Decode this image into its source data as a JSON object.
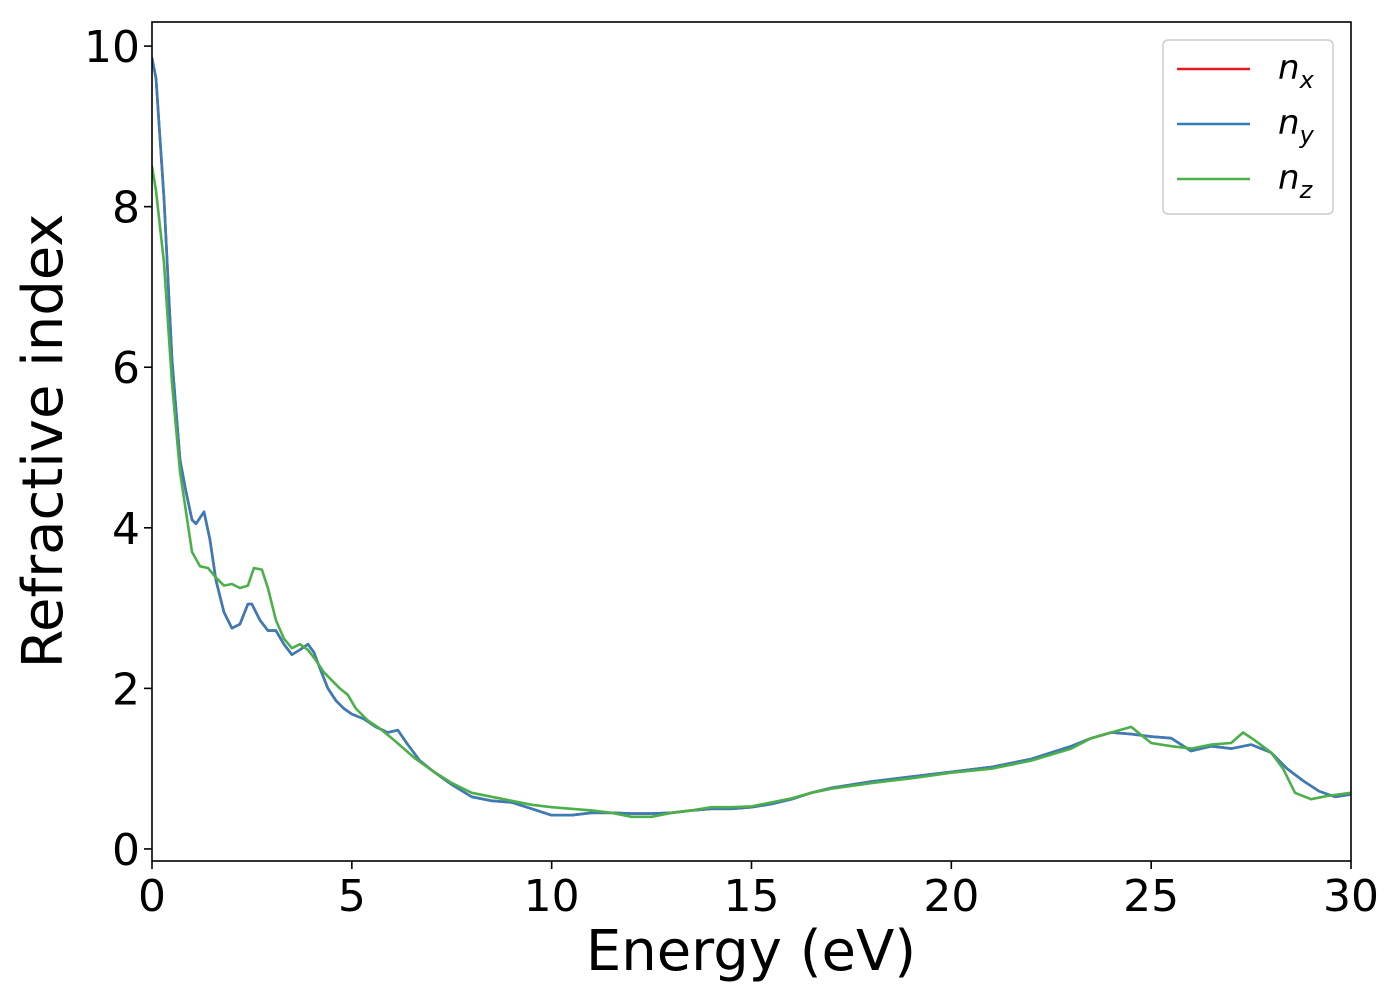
{
  "chart_data": {
    "type": "line",
    "title": "",
    "xlabel": "Energy (eV)",
    "ylabel": "Refractive index",
    "xlim": [
      0,
      30
    ],
    "ylim": [
      -0.15,
      10.3
    ],
    "xticks": [
      0,
      5,
      10,
      15,
      20,
      25,
      30
    ],
    "yticks": [
      0,
      2,
      4,
      6,
      8,
      10
    ],
    "grid": false,
    "legend_position": "top-right",
    "series": [
      {
        "name": "n",
        "subscript": "x",
        "color": "#e41a1c",
        "x": [
          0.0,
          0.1,
          0.3,
          0.5,
          0.7,
          0.85,
          1.0,
          1.1,
          1.3,
          1.45,
          1.6,
          1.8,
          2.0,
          2.2,
          2.4,
          2.5,
          2.7,
          2.9,
          3.1,
          3.3,
          3.5,
          3.7,
          3.9,
          4.05,
          4.2,
          4.4,
          4.6,
          4.8,
          5.0,
          5.3,
          5.6,
          5.9,
          6.15,
          6.4,
          6.7,
          7.0,
          7.5,
          8.0,
          8.5,
          9.0,
          9.5,
          10.0,
          10.5,
          11.0,
          11.5,
          12.0,
          12.5,
          13.0,
          13.5,
          14.0,
          14.5,
          15.0,
          15.5,
          16.0,
          16.5,
          17.0,
          18.0,
          19.0,
          20.0,
          21.0,
          22.0,
          23.0,
          23.5,
          24.0,
          24.5,
          25.0,
          25.5,
          26.0,
          26.5,
          27.0,
          27.5,
          28.0,
          28.4,
          28.8,
          29.2,
          29.6,
          30.0
        ],
        "y": [
          9.85,
          9.6,
          8.1,
          6.1,
          4.85,
          4.45,
          4.1,
          4.05,
          4.2,
          3.85,
          3.35,
          2.95,
          2.75,
          2.8,
          3.05,
          3.05,
          2.85,
          2.72,
          2.72,
          2.55,
          2.42,
          2.48,
          2.55,
          2.45,
          2.25,
          2.0,
          1.85,
          1.75,
          1.68,
          1.62,
          1.52,
          1.45,
          1.48,
          1.3,
          1.1,
          0.98,
          0.8,
          0.65,
          0.6,
          0.58,
          0.5,
          0.42,
          0.42,
          0.45,
          0.45,
          0.44,
          0.44,
          0.45,
          0.48,
          0.5,
          0.5,
          0.52,
          0.56,
          0.62,
          0.7,
          0.76,
          0.84,
          0.9,
          0.96,
          1.02,
          1.12,
          1.28,
          1.38,
          1.45,
          1.43,
          1.4,
          1.38,
          1.22,
          1.28,
          1.25,
          1.3,
          1.2,
          1.0,
          0.85,
          0.72,
          0.65,
          0.68
        ]
      },
      {
        "name": "n",
        "subscript": "y",
        "color": "#377eb8",
        "x": [
          0.0,
          0.1,
          0.3,
          0.5,
          0.7,
          0.85,
          1.0,
          1.1,
          1.3,
          1.45,
          1.6,
          1.8,
          2.0,
          2.2,
          2.4,
          2.5,
          2.7,
          2.9,
          3.1,
          3.3,
          3.5,
          3.7,
          3.9,
          4.05,
          4.2,
          4.4,
          4.6,
          4.8,
          5.0,
          5.3,
          5.6,
          5.9,
          6.15,
          6.4,
          6.7,
          7.0,
          7.5,
          8.0,
          8.5,
          9.0,
          9.5,
          10.0,
          10.5,
          11.0,
          11.5,
          12.0,
          12.5,
          13.0,
          13.5,
          14.0,
          14.5,
          15.0,
          15.5,
          16.0,
          16.5,
          17.0,
          18.0,
          19.0,
          20.0,
          21.0,
          22.0,
          23.0,
          23.5,
          24.0,
          24.5,
          25.0,
          25.5,
          26.0,
          26.5,
          27.0,
          27.5,
          28.0,
          28.4,
          28.8,
          29.2,
          29.6,
          30.0
        ],
        "y": [
          9.85,
          9.6,
          8.1,
          6.1,
          4.85,
          4.45,
          4.1,
          4.05,
          4.2,
          3.85,
          3.35,
          2.95,
          2.75,
          2.8,
          3.05,
          3.05,
          2.85,
          2.72,
          2.72,
          2.55,
          2.42,
          2.48,
          2.55,
          2.45,
          2.25,
          2.0,
          1.85,
          1.75,
          1.68,
          1.62,
          1.52,
          1.45,
          1.48,
          1.3,
          1.1,
          0.98,
          0.8,
          0.65,
          0.6,
          0.58,
          0.5,
          0.42,
          0.42,
          0.45,
          0.45,
          0.44,
          0.44,
          0.45,
          0.48,
          0.5,
          0.5,
          0.52,
          0.56,
          0.62,
          0.7,
          0.76,
          0.84,
          0.9,
          0.96,
          1.02,
          1.12,
          1.28,
          1.38,
          1.45,
          1.43,
          1.4,
          1.38,
          1.22,
          1.28,
          1.25,
          1.3,
          1.2,
          1.0,
          0.85,
          0.72,
          0.65,
          0.68
        ]
      },
      {
        "name": "n",
        "subscript": "z",
        "color": "#4daf4a",
        "x": [
          0.0,
          0.1,
          0.3,
          0.5,
          0.7,
          0.85,
          1.0,
          1.2,
          1.4,
          1.6,
          1.8,
          2.0,
          2.2,
          2.4,
          2.55,
          2.75,
          2.9,
          3.1,
          3.3,
          3.5,
          3.7,
          3.9,
          4.1,
          4.3,
          4.5,
          4.7,
          4.9,
          5.1,
          5.4,
          5.7,
          6.0,
          6.3,
          6.6,
          7.0,
          7.5,
          8.0,
          8.5,
          9.0,
          9.5,
          10.0,
          10.5,
          11.0,
          11.5,
          12.0,
          12.5,
          13.0,
          13.5,
          14.0,
          14.5,
          15.0,
          15.5,
          16.0,
          16.5,
          17.0,
          18.0,
          19.0,
          20.0,
          21.0,
          22.0,
          23.0,
          23.5,
          24.0,
          24.5,
          25.0,
          25.5,
          26.0,
          26.5,
          27.0,
          27.3,
          27.6,
          28.0,
          28.3,
          28.6,
          29.0,
          29.4,
          29.7,
          30.0
        ],
        "y": [
          8.5,
          8.2,
          7.3,
          5.8,
          4.7,
          4.2,
          3.7,
          3.52,
          3.5,
          3.38,
          3.28,
          3.3,
          3.25,
          3.28,
          3.5,
          3.48,
          3.25,
          2.85,
          2.62,
          2.5,
          2.55,
          2.48,
          2.35,
          2.2,
          2.1,
          2.0,
          1.92,
          1.75,
          1.6,
          1.5,
          1.38,
          1.25,
          1.12,
          0.98,
          0.82,
          0.7,
          0.65,
          0.6,
          0.55,
          0.52,
          0.5,
          0.48,
          0.45,
          0.4,
          0.4,
          0.45,
          0.48,
          0.52,
          0.52,
          0.53,
          0.58,
          0.63,
          0.7,
          0.75,
          0.82,
          0.88,
          0.95,
          1.0,
          1.1,
          1.25,
          1.38,
          1.45,
          1.52,
          1.32,
          1.28,
          1.25,
          1.3,
          1.32,
          1.45,
          1.35,
          1.2,
          1.0,
          0.7,
          0.62,
          0.66,
          0.68,
          0.7
        ]
      }
    ]
  }
}
